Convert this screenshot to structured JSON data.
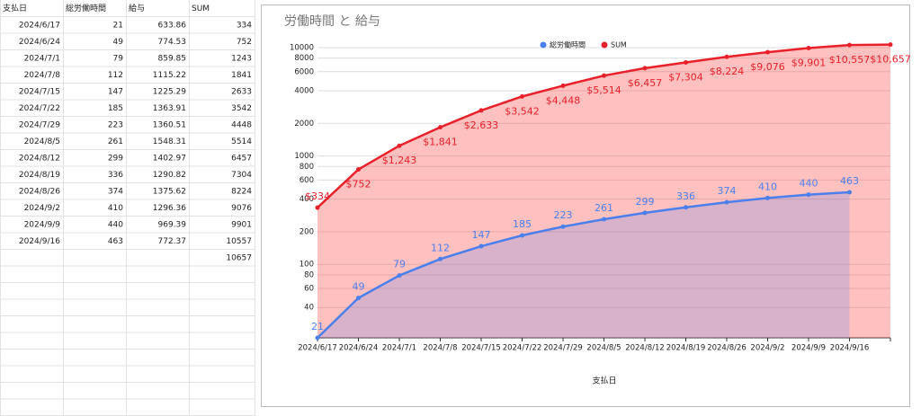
{
  "table": {
    "headers": [
      "支払日",
      "総労働時間",
      "給与",
      "SUM"
    ],
    "rows": [
      [
        "2024/6/17",
        21,
        633.86,
        334
      ],
      [
        "2024/6/24",
        49,
        774.53,
        752
      ],
      [
        "2024/7/1",
        79,
        859.85,
        1243
      ],
      [
        "2024/7/8",
        112,
        1115.22,
        1841
      ],
      [
        "2024/7/15",
        147,
        1225.29,
        2633
      ],
      [
        "2024/7/22",
        185,
        1363.91,
        3542
      ],
      [
        "2024/7/29",
        223,
        1360.51,
        4448
      ],
      [
        "2024/8/5",
        261,
        1548.31,
        5514
      ],
      [
        "2024/8/12",
        299,
        1402.97,
        6457
      ],
      [
        "2024/8/19",
        336,
        1290.82,
        7304
      ],
      [
        "2024/8/26",
        374,
        1375.62,
        8224
      ],
      [
        "2024/9/2",
        410,
        1296.36,
        9076
      ],
      [
        "2024/9/9",
        440,
        969.39,
        9901
      ],
      [
        "2024/9/16",
        463,
        772.37,
        10557
      ],
      [
        null,
        null,
        null,
        10657
      ]
    ]
  },
  "chart_data": {
    "type": "line",
    "title": "労働時間 と 給与",
    "x_label": "支払日",
    "categories": [
      "2024/6/17",
      "2024/6/24",
      "2024/7/1",
      "2024/7/8",
      "2024/7/15",
      "2024/7/22",
      "2024/7/29",
      "2024/8/5",
      "2024/8/12",
      "2024/8/19",
      "2024/8/26",
      "2024/9/2",
      "2024/9/9",
      "2024/9/16",
      null
    ],
    "series": [
      {
        "name": "総労働時間",
        "color": "#4a7fec",
        "area_color": "rgba(74,127,236,0.22)",
        "values": [
          21,
          49,
          79,
          112,
          147,
          185,
          223,
          261,
          299,
          336,
          374,
          410,
          440,
          463,
          null
        ]
      },
      {
        "name": "SUM",
        "color": "#e8202a",
        "area_color": "rgba(255,60,60,0.32)",
        "values": [
          334,
          752,
          1243,
          1841,
          2633,
          3542,
          4448,
          5514,
          6457,
          7304,
          8224,
          9076,
          9901,
          10557,
          10657
        ],
        "value_labels": [
          "$334",
          "$752",
          "$1,243",
          "$1,841",
          "$2,633",
          "$3,542",
          "$4,448",
          "$5,514",
          "$6,457",
          "$7,304",
          "$8,224",
          "$9,076",
          "$9,901",
          "$10,557",
          "$10,657"
        ]
      }
    ],
    "ylim": [
      21,
      11000
    ],
    "log_scale": true,
    "yticks": [
      40,
      60,
      80,
      100,
      200,
      400,
      600,
      800,
      1000,
      2000,
      4000,
      6000,
      8000,
      10000
    ],
    "grid": true,
    "legend": "top"
  }
}
